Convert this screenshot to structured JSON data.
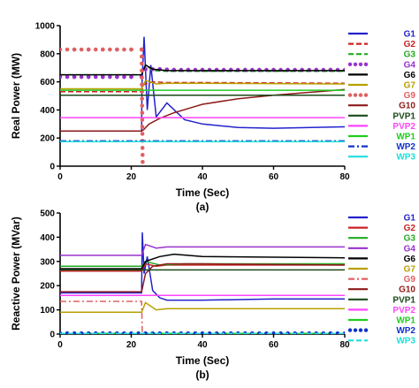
{
  "chart_data": [
    {
      "type": "line",
      "caption": "(a)",
      "xlabel": "Time (Sec)",
      "ylabel": "Real Power (MW)",
      "xlim": [
        0,
        80
      ],
      "ylim": [
        0,
        1000
      ],
      "xticks": [
        0,
        20,
        40,
        60,
        80
      ],
      "yticks": [
        0,
        200,
        400,
        600,
        800,
        1000
      ],
      "grid": false,
      "legend_position": "right",
      "series": [
        {
          "name": "G1",
          "color": "#2222cc",
          "style": "solid",
          "x": [
            0,
            22.9,
            23.0,
            23.6,
            24.5,
            25.5,
            27,
            30,
            35,
            40,
            50,
            60,
            80
          ],
          "y": [
            250,
            250,
            580,
            920,
            400,
            720,
            350,
            450,
            330,
            300,
            275,
            270,
            280
          ]
        },
        {
          "name": "G2",
          "color": "#cc2222",
          "style": "dashed",
          "x": [
            0,
            22.9,
            23.5,
            26,
            30,
            40,
            80
          ],
          "y": [
            530,
            530,
            580,
            600,
            595,
            595,
            590
          ]
        },
        {
          "name": "G3",
          "color": "#22aa22",
          "style": "dashed",
          "x": [
            0,
            22.9,
            24,
            26,
            30,
            40,
            80
          ],
          "y": [
            650,
            650,
            720,
            680,
            675,
            675,
            675
          ]
        },
        {
          "name": "G4",
          "color": "#9933cc",
          "style": "dots",
          "x": [
            0,
            4,
            8,
            12,
            16,
            20,
            22.9,
            24,
            28,
            32,
            36,
            40,
            44,
            48,
            52,
            56,
            60,
            64,
            68,
            72,
            76,
            80
          ],
          "y": [
            635,
            635,
            635,
            635,
            635,
            635,
            635,
            690,
            690,
            685,
            685,
            685,
            685,
            685,
            685,
            685,
            685,
            685,
            685,
            685,
            685,
            685
          ]
        },
        {
          "name": "G6",
          "color": "#000000",
          "style": "solid",
          "x": [
            0,
            22.9,
            24,
            26,
            30,
            40,
            80
          ],
          "y": [
            650,
            650,
            720,
            690,
            680,
            680,
            680
          ]
        },
        {
          "name": "G7",
          "color": "#b8a000",
          "style": "solid",
          "x": [
            0,
            22.9,
            24,
            27,
            30,
            40,
            80
          ],
          "y": [
            550,
            550,
            610,
            585,
            590,
            590,
            585
          ]
        },
        {
          "name": "G9",
          "color": "#e06060",
          "style": "dots",
          "x": [
            0,
            4,
            8,
            12,
            16,
            20,
            22.9,
            23.2
          ],
          "y": [
            830,
            830,
            830,
            830,
            830,
            830,
            830,
            30
          ]
        },
        {
          "name": "G10",
          "color": "#8b1a1a",
          "style": "solid",
          "x": [
            0,
            22.9,
            23.5,
            25,
            28,
            32,
            36,
            40,
            50,
            60,
            70,
            80
          ],
          "y": [
            250,
            250,
            260,
            300,
            340,
            380,
            410,
            440,
            480,
            505,
            525,
            545
          ]
        },
        {
          "name": "PVP1",
          "color": "#1a4a1a",
          "style": "solid",
          "x": [
            0,
            80
          ],
          "y": [
            505,
            505
          ]
        },
        {
          "name": "PVP2",
          "color": "#ff44ff",
          "style": "solid",
          "x": [
            0,
            80
          ],
          "y": [
            345,
            345
          ]
        },
        {
          "name": "WP1",
          "color": "#22cc22",
          "style": "solid",
          "x": [
            0,
            80
          ],
          "y": [
            540,
            540
          ]
        },
        {
          "name": "WP2",
          "color": "#1133cc",
          "style": "dashdot",
          "x": [
            0,
            80
          ],
          "y": [
            180,
            180
          ]
        },
        {
          "name": "WP3",
          "color": "#22dddd",
          "style": "solid",
          "x": [
            0,
            80
          ],
          "y": [
            175,
            175
          ]
        }
      ]
    },
    {
      "type": "line",
      "caption": "(b)",
      "xlabel": "Time (Sec)",
      "ylabel": "Reactive Power (MVar)",
      "xlim": [
        0,
        80
      ],
      "ylim": [
        0,
        500
      ],
      "xticks": [
        0,
        20,
        40,
        60,
        80
      ],
      "yticks": [
        0,
        100,
        200,
        300,
        400,
        500
      ],
      "grid": false,
      "legend_position": "right",
      "series": [
        {
          "name": "G1",
          "color": "#2222cc",
          "style": "solid",
          "x": [
            0,
            22.9,
            23.1,
            23.6,
            24.5,
            26,
            28,
            30,
            35,
            40,
            60,
            80
          ],
          "y": [
            170,
            170,
            420,
            250,
            320,
            180,
            150,
            140,
            140,
            140,
            145,
            145
          ]
        },
        {
          "name": "G2",
          "color": "#cc2222",
          "style": "solid",
          "x": [
            0,
            22.9,
            24,
            27,
            30,
            40,
            80
          ],
          "y": [
            260,
            260,
            290,
            280,
            285,
            285,
            285
          ]
        },
        {
          "name": "G3",
          "color": "#22aa22",
          "style": "solid",
          "x": [
            0,
            22.9,
            24,
            28,
            35,
            40,
            80
          ],
          "y": [
            280,
            280,
            300,
            285,
            290,
            290,
            290
          ]
        },
        {
          "name": "G4",
          "color": "#9933cc",
          "style": "solid",
          "x": [
            0,
            22.9,
            24,
            27,
            30,
            40,
            80
          ],
          "y": [
            325,
            325,
            370,
            355,
            360,
            360,
            360
          ]
        },
        {
          "name": "G6",
          "color": "#000000",
          "style": "solid",
          "x": [
            0,
            22.9,
            24,
            28,
            32,
            40,
            80
          ],
          "y": [
            270,
            270,
            300,
            320,
            330,
            320,
            315
          ]
        },
        {
          "name": "G7",
          "color": "#b8a000",
          "style": "solid",
          "x": [
            0,
            22.9,
            24,
            27,
            30,
            40,
            80
          ],
          "y": [
            90,
            90,
            130,
            100,
            105,
            105,
            105
          ]
        },
        {
          "name": "G9",
          "color": "#e06060",
          "style": "dashdot",
          "x": [
            0,
            22.9,
            23.1
          ],
          "y": [
            135,
            135,
            0
          ]
        },
        {
          "name": "G10",
          "color": "#8b1a1a",
          "style": "solid",
          "x": [
            0,
            22.9,
            24,
            26,
            30,
            40,
            80
          ],
          "y": [
            175,
            175,
            250,
            280,
            290,
            290,
            285
          ]
        },
        {
          "name": "PVP1",
          "color": "#1a4a1a",
          "style": "solid",
          "x": [
            0,
            80
          ],
          "y": [
            265,
            265
          ]
        },
        {
          "name": "PVP2",
          "color": "#ff44ff",
          "style": "solid",
          "x": [
            0,
            80
          ],
          "y": [
            160,
            160
          ]
        },
        {
          "name": "WP1",
          "color": "#22cc22",
          "style": "solid",
          "x": [
            0,
            80
          ],
          "y": [
            3,
            3
          ]
        },
        {
          "name": "WP2",
          "color": "#1133cc",
          "style": "dots",
          "x": [
            0,
            80
          ],
          "y": [
            3,
            3
          ]
        },
        {
          "name": "WP3",
          "color": "#22dddd",
          "style": "dashed",
          "x": [
            0,
            80
          ],
          "y": [
            3,
            3
          ]
        }
      ]
    }
  ]
}
